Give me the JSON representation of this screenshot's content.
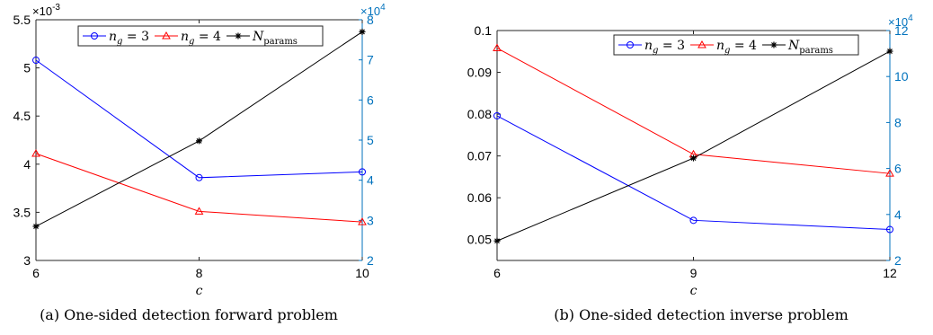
{
  "chart_data": [
    {
      "type": "line",
      "caption": "(a) One-sided detection forward problem",
      "xlabel": "c",
      "x": [
        6,
        8,
        10
      ],
      "xlim": [
        6,
        10
      ],
      "xticks": [
        "6",
        "8",
        "10"
      ],
      "ylim_left": [
        3,
        5.5
      ],
      "yticks_left": [
        "3",
        "3.5",
        "4",
        "4.5",
        "5",
        "5.5"
      ],
      "left_multiplier": [
        "×10",
        "-3"
      ],
      "ylim_right": [
        2,
        8
      ],
      "yticks_right": [
        "2",
        "3",
        "4",
        "5",
        "6",
        "7",
        "8"
      ],
      "right_multiplier": [
        "×10",
        "4"
      ],
      "legend": [
        "n",
        "g",
        " = 3",
        " = 4",
        "N",
        "params"
      ],
      "legend_position": "top-center",
      "series": [
        {
          "name": "n_g = 3",
          "axis": "left",
          "color": "#0000ff",
          "marker": "circle",
          "values": [
            5.08,
            3.86,
            3.92
          ]
        },
        {
          "name": "n_g = 4",
          "axis": "left",
          "color": "#ff0000",
          "marker": "triangle",
          "values": [
            4.11,
            3.51,
            3.4
          ]
        },
        {
          "name": "N_params",
          "axis": "right",
          "color": "#000000",
          "marker": "star",
          "values": [
            2.85,
            4.98,
            7.7
          ]
        }
      ]
    },
    {
      "type": "line",
      "caption": "(b) One-sided detection inverse problem",
      "xlabel": "c",
      "x": [
        6,
        9,
        12
      ],
      "xlim": [
        6,
        12
      ],
      "xticks": [
        "6",
        "9",
        "12"
      ],
      "ylim_left": [
        0.045,
        0.1
      ],
      "yticks_left": [
        "0.05",
        "0.06",
        "0.07",
        "0.08",
        "0.09",
        "0.1"
      ],
      "left_multiplier": null,
      "ylim_right": [
        2,
        12
      ],
      "yticks_right": [
        "2",
        "4",
        "6",
        "8",
        "10",
        "12"
      ],
      "right_multiplier": [
        "×10",
        "4"
      ],
      "legend": [
        "n",
        "g",
        " = 3",
        " = 4",
        "N",
        "params"
      ],
      "legend_position": "top-center",
      "series": [
        {
          "name": "n_g = 3",
          "axis": "left",
          "color": "#0000ff",
          "marker": "circle",
          "values": [
            0.0796,
            0.0546,
            0.0524
          ]
        },
        {
          "name": "n_g = 4",
          "axis": "left",
          "color": "#ff0000",
          "marker": "triangle",
          "values": [
            0.0958,
            0.0704,
            0.0658
          ]
        },
        {
          "name": "N_params",
          "axis": "right",
          "color": "#000000",
          "marker": "star",
          "values": [
            2.85,
            6.45,
            11.1
          ]
        }
      ]
    }
  ]
}
